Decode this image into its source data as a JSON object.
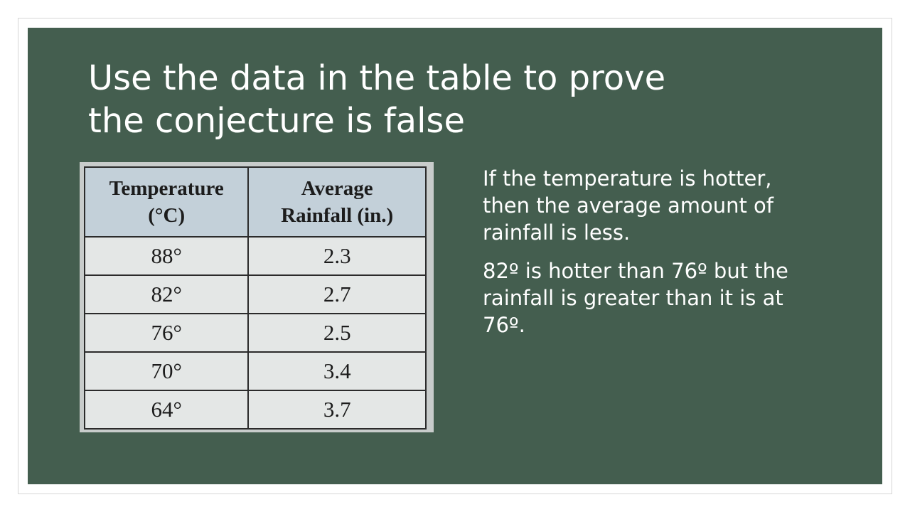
{
  "slide": {
    "title_line1": "Use the data in the table to prove",
    "title_line2": "the conjecture is false",
    "colors": {
      "background": "#445e4f",
      "text": "#ffffff",
      "table_header": "#c3d0d9",
      "table_body": "#e4e7e6"
    }
  },
  "table": {
    "headers": {
      "temperature_line1": "Temperature",
      "temperature_line2": "(°C)",
      "rainfall_line1": "Average",
      "rainfall_line2": "Rainfall (in.)"
    },
    "rows": [
      {
        "temperature": "88°",
        "rainfall": "2.3"
      },
      {
        "temperature": "82°",
        "rainfall": "2.7"
      },
      {
        "temperature": "76°",
        "rainfall": "2.5"
      },
      {
        "temperature": "70°",
        "rainfall": "3.4"
      },
      {
        "temperature": "64°",
        "rainfall": "3.7"
      }
    ]
  },
  "content": {
    "conjecture": "If the temperature is hotter, then the average amount of rainfall is less.",
    "counterexample": "82º is hotter than 76º but the rainfall is greater than it is at 76º."
  }
}
